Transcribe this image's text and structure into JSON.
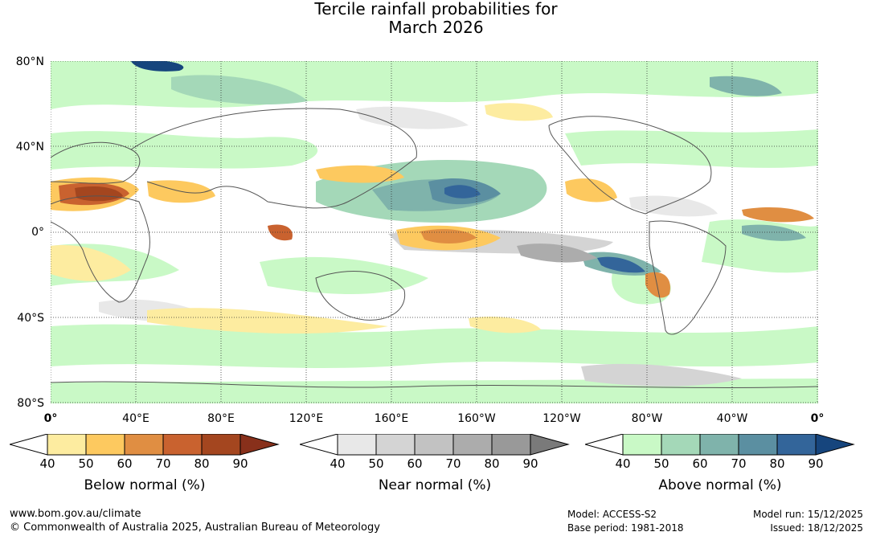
{
  "title": {
    "line1": "Tercile rainfall probabilities for",
    "line2": "March 2026"
  },
  "map": {
    "lat_labels": [
      "80°N",
      "40°N",
      "0°",
      "40°S",
      "80°S"
    ],
    "lon_labels": [
      "0°",
      "40°E",
      "80°E",
      "120°E",
      "160°E",
      "160°W",
      "120°W",
      "80°W",
      "40°W",
      "0°"
    ]
  },
  "legends": {
    "below": {
      "title": "Below normal (%)",
      "ticks": [
        "40",
        "50",
        "60",
        "70",
        "80",
        "90"
      ],
      "colors": [
        "#ffffff",
        "#fdeca0",
        "#fdc95f",
        "#e08e42",
        "#c9622f",
        "#a4461f",
        "#88301b"
      ]
    },
    "near": {
      "title": "Near normal (%)",
      "ticks": [
        "40",
        "50",
        "60",
        "70",
        "80",
        "90"
      ],
      "colors": [
        "#ffffff",
        "#e8e8e8",
        "#d4d4d4",
        "#c2c2c2",
        "#acacac",
        "#999999",
        "#7a7a7a"
      ]
    },
    "above": {
      "title": "Above normal (%)",
      "ticks": [
        "40",
        "50",
        "60",
        "70",
        "80",
        "90"
      ],
      "colors": [
        "#ffffff",
        "#c9f9c6",
        "#a4d8b8",
        "#7fb3ab",
        "#5b8fa1",
        "#33659a",
        "#16457d"
      ]
    }
  },
  "footer": {
    "url": "www.bom.gov.au/climate",
    "copyright": "© Commonwealth of Australia 2025, Australian Bureau of Meteorology",
    "model": "Model: ACCESS-S2",
    "base_period": "Base period: 1981-2018",
    "model_run": "Model run: 15/12/2025",
    "issued": "Issued: 18/12/2025"
  }
}
